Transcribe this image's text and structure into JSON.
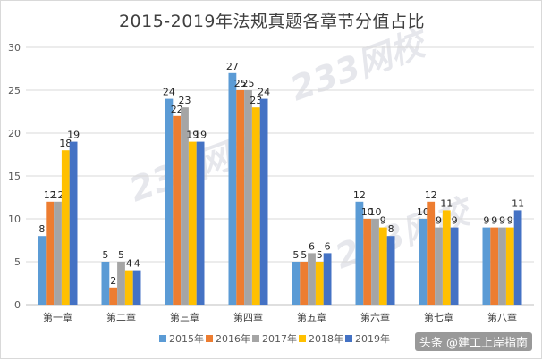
{
  "chart_data": {
    "type": "bar",
    "title": "2015-2019年法规真题各章节分值占比",
    "categories": [
      "第一章",
      "第二章",
      "第三章",
      "第四章",
      "第五章",
      "第六章",
      "第七章",
      "第八章"
    ],
    "series": [
      {
        "name": "2015年",
        "color": "#5b9bd5",
        "values": [
          8,
          5,
          24,
          27,
          5,
          12,
          10,
          9
        ]
      },
      {
        "name": "2016年",
        "color": "#ed7d31",
        "values": [
          12,
          2,
          22,
          25,
          5,
          10,
          12,
          9
        ]
      },
      {
        "name": "2017年",
        "color": "#a5a5a5",
        "values": [
          12,
          5,
          23,
          25,
          6,
          10,
          9,
          9
        ]
      },
      {
        "name": "2018年",
        "color": "#ffc000",
        "values": [
          18,
          4,
          19,
          23,
          5,
          9,
          11,
          9
        ]
      },
      {
        "name": "2019年",
        "color": "#4472c4",
        "values": [
          19,
          4,
          19,
          24,
          6,
          8,
          9,
          11
        ]
      }
    ],
    "ylim": [
      0,
      30
    ],
    "yticks": [
      0,
      5,
      10,
      15,
      20,
      25,
      30
    ],
    "grid": true,
    "legend": "bottom"
  },
  "watermarks": [
    "233网校",
    "233网校",
    "233网校"
  ],
  "credit": "头条 @建工上岸指南"
}
